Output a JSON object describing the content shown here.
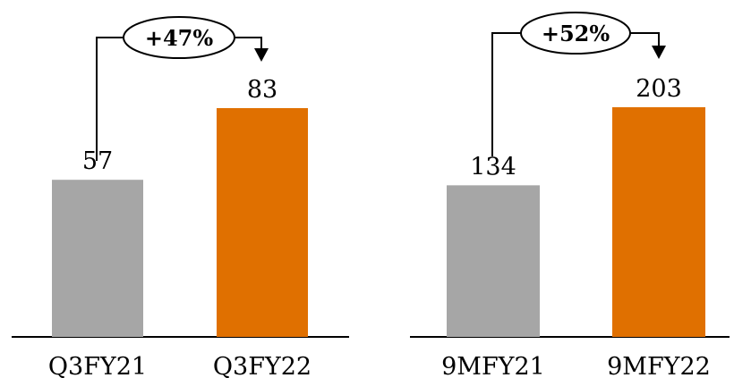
{
  "chart_data": [
    {
      "type": "bar",
      "categories": [
        "Q3FY21",
        "Q3FY22"
      ],
      "values": [
        57,
        83
      ],
      "colors": [
        "#a6a6a6",
        "#e07000"
      ],
      "growth_label": "+47%",
      "title": "",
      "xlabel": "",
      "ylabel": "",
      "grid": false
    },
    {
      "type": "bar",
      "categories": [
        "9MFY21",
        "9MFY22"
      ],
      "values": [
        134,
        203
      ],
      "colors": [
        "#a6a6a6",
        "#e07000"
      ],
      "growth_label": "+52%",
      "title": "",
      "xlabel": "",
      "ylabel": "",
      "grid": false
    }
  ]
}
